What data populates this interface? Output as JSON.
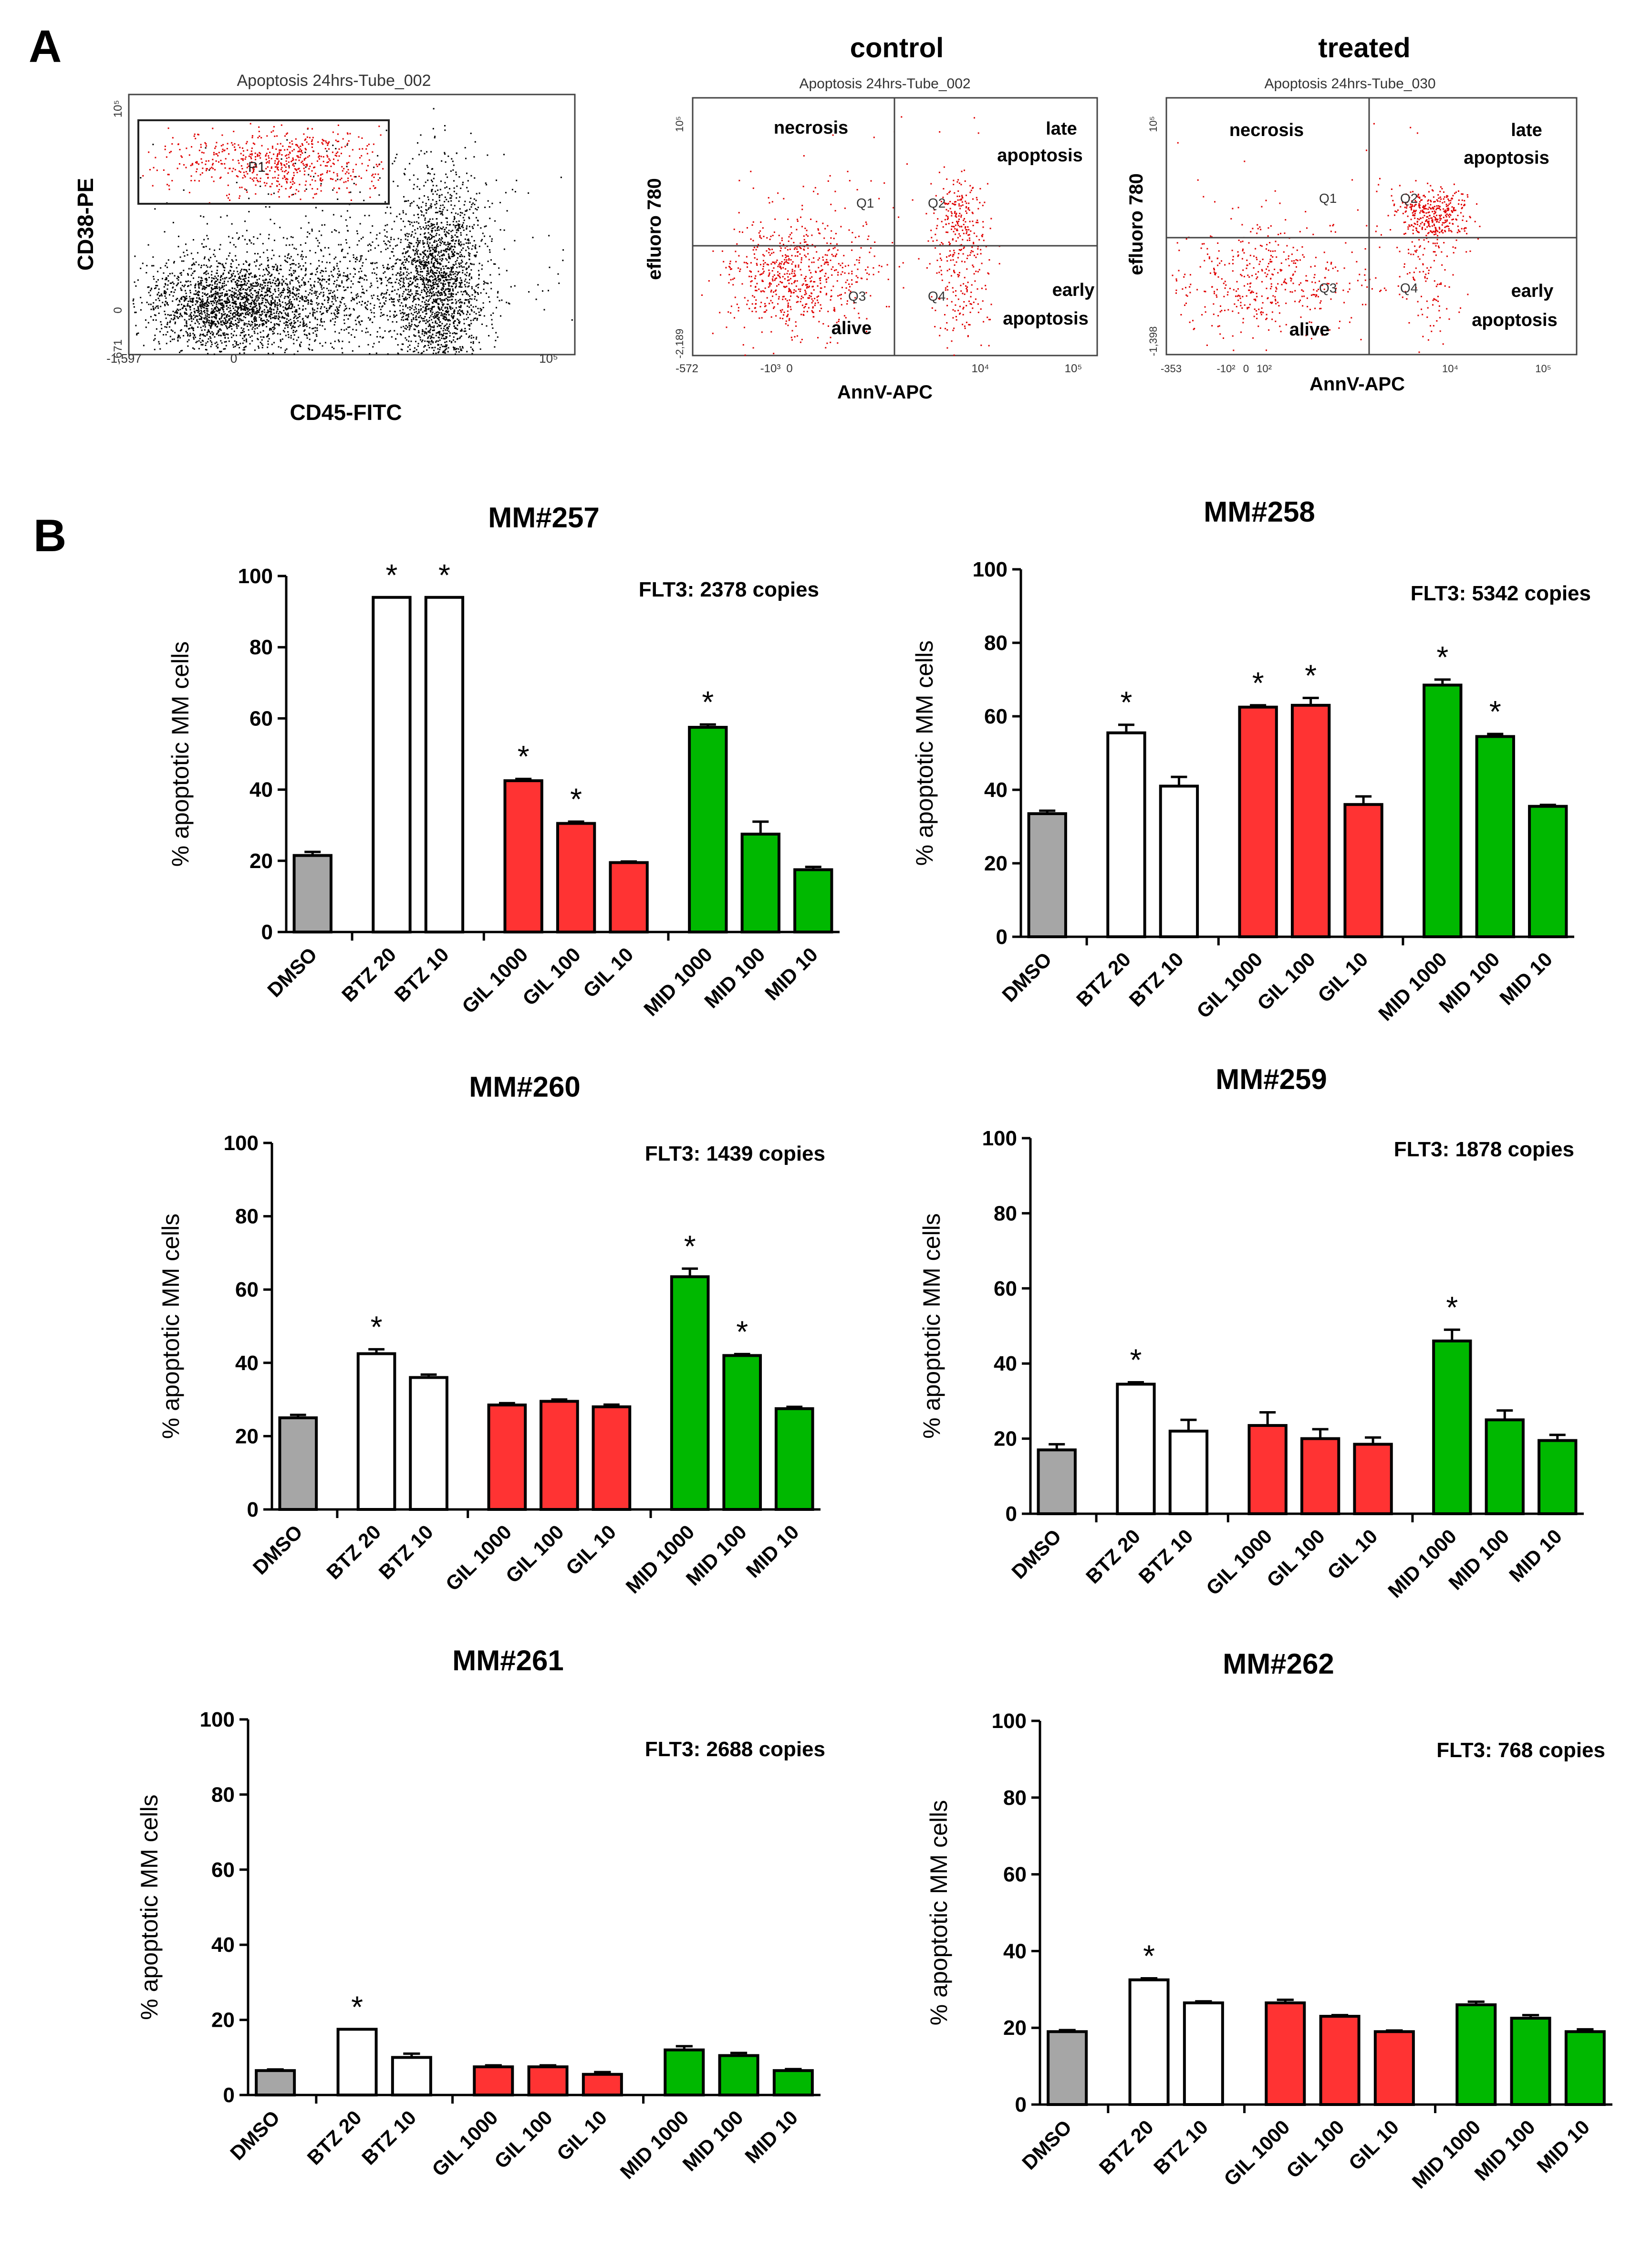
{
  "panel_labels": {
    "a": "A",
    "b": "B"
  },
  "flow": {
    "gating": {
      "plot_title": "Apoptosis 24hrs-Tube_002",
      "xlabel": "CD45-FITC",
      "ylabel": "CD38-PE",
      "gate_label": "P1",
      "x_ticks": [
        "-1,597",
        "0",
        "10⁵"
      ],
      "y_ticks": [
        "-671",
        "0",
        "10⁵"
      ]
    },
    "control": {
      "heading": "control",
      "plot_title": "Apoptosis 24hrs-Tube_002",
      "xlabel": "AnnV-APC",
      "ylabel": "efluoro 780",
      "x_ticks": [
        "-572",
        "-10³",
        "0",
        "10⁴",
        "10⁵"
      ],
      "y_ticks": [
        "-2,189",
        "10⁵"
      ],
      "quadrant_names": {
        "necrosis": "necrosis",
        "late": [
          "late",
          "apoptosis"
        ],
        "early": [
          "early",
          "apoptosis"
        ],
        "alive": "alive"
      },
      "quadrant_ids": [
        "Q1",
        "Q2",
        "Q3",
        "Q4"
      ]
    },
    "treated": {
      "heading": "treated",
      "plot_title": "Apoptosis 24hrs-Tube_030",
      "xlabel": "AnnV-APC",
      "ylabel": "efluoro 780",
      "x_ticks": [
        "-353",
        "-10²",
        "0",
        "10²",
        "10⁴",
        "10⁵"
      ],
      "y_ticks": [
        "-1,398",
        "10⁵"
      ],
      "quadrant_names": {
        "necrosis": "necrosis",
        "late": [
          "late",
          "apoptosis"
        ],
        "early": [
          "early",
          "apoptosis"
        ],
        "alive": "alive"
      },
      "quadrant_ids": [
        "Q1",
        "Q2",
        "Q3",
        "Q4"
      ]
    }
  },
  "colors": {
    "DMSO": "#a6a6a6",
    "BTZ": "#ffffff",
    "GIL": "#ff3333",
    "MID": "#00b800",
    "gate_dots": "#e00000",
    "dots": "#000000"
  },
  "chart_data": [
    {
      "type": "bar",
      "title": "MM#257",
      "annotation": "FLT3: 2378  copies",
      "ylabel": "% apoptotic MM cells",
      "ylim": [
        0,
        100
      ],
      "yticks": [
        "0",
        "20",
        "40",
        "60",
        "80",
        "100"
      ],
      "categories": [
        "DMSO",
        "BTZ 20",
        "BTZ 10",
        "GIL 1000",
        "GIL 100",
        "GIL 10",
        "MID 1000",
        "MID 100",
        "MID 10"
      ],
      "groups": [
        "DMSO",
        "BTZ",
        "BTZ",
        "GIL",
        "GIL",
        "GIL",
        "MID",
        "MID",
        "MID"
      ],
      "values": [
        21.5,
        94,
        94,
        42.5,
        30.5,
        19.5,
        57.5,
        27.5,
        17.5
      ],
      "errors": [
        1,
        0,
        0,
        0.5,
        0.5,
        0.3,
        0.8,
        3.5,
        0.8
      ],
      "significant": [
        false,
        true,
        true,
        true,
        true,
        false,
        true,
        false,
        false
      ]
    },
    {
      "type": "bar",
      "title": "MM#258",
      "annotation": "FLT3: 5342  copies",
      "ylabel": "% apoptotic MM cells",
      "ylim": [
        0,
        100
      ],
      "yticks": [
        "0",
        "20",
        "40",
        "60",
        "80",
        "100"
      ],
      "categories": [
        "DMSO",
        "BTZ 20",
        "BTZ 10",
        "GIL 1000",
        "GIL 100",
        "GIL 10",
        "MID 1000",
        "MID 100",
        "MID 10"
      ],
      "groups": [
        "DMSO",
        "BTZ",
        "BTZ",
        "GIL",
        "GIL",
        "GIL",
        "MID",
        "MID",
        "MID"
      ],
      "values": [
        33.5,
        55.5,
        41,
        62.5,
        63,
        36,
        68.5,
        54.5,
        35.5
      ],
      "errors": [
        0.8,
        2.2,
        2.5,
        0.5,
        2,
        2.2,
        1.5,
        0.7,
        0.4
      ],
      "significant": [
        false,
        true,
        false,
        true,
        true,
        false,
        true,
        true,
        false
      ]
    },
    {
      "type": "bar",
      "title": "MM#260",
      "annotation": "FLT3: 1439  copies",
      "ylabel": "% apoptotic MM cells",
      "ylim": [
        0,
        100
      ],
      "yticks": [
        "0",
        "20",
        "40",
        "60",
        "80",
        "100"
      ],
      "categories": [
        "DMSO",
        "BTZ 20",
        "BTZ 10",
        "GIL 1000",
        "GIL 100",
        "GIL 10",
        "MID 1000",
        "MID 100",
        "MID 10"
      ],
      "groups": [
        "DMSO",
        "BTZ",
        "BTZ",
        "GIL",
        "GIL",
        "GIL",
        "MID",
        "MID",
        "MID"
      ],
      "values": [
        25,
        42.5,
        36,
        28.5,
        29.5,
        28,
        63.5,
        42,
        27.5
      ],
      "errors": [
        0.8,
        1.2,
        0.8,
        0.5,
        0.5,
        0.6,
        2.2,
        0.4,
        0.5
      ],
      "significant": [
        false,
        true,
        false,
        false,
        false,
        false,
        true,
        true,
        false
      ]
    },
    {
      "type": "bar",
      "title": "MM#259",
      "annotation": "FLT3: 1878  copies",
      "ylabel": "% apoptotic MM cells",
      "ylim": [
        0,
        100
      ],
      "yticks": [
        "0",
        "20",
        "40",
        "60",
        "80",
        "100"
      ],
      "categories": [
        "DMSO",
        "BTZ 20",
        "BTZ 10",
        "GIL 1000",
        "GIL 100",
        "GIL 10",
        "MID 1000",
        "MID 100",
        "MID 10"
      ],
      "groups": [
        "DMSO",
        "BTZ",
        "BTZ",
        "GIL",
        "GIL",
        "GIL",
        "MID",
        "MID",
        "MID"
      ],
      "values": [
        17,
        34.5,
        22,
        23.5,
        20,
        18.5,
        46,
        25,
        19.5
      ],
      "errors": [
        1.5,
        0.5,
        3,
        3.5,
        2.5,
        1.8,
        3,
        2.5,
        1.5
      ],
      "significant": [
        false,
        true,
        false,
        false,
        false,
        false,
        true,
        false,
        false
      ]
    },
    {
      "type": "bar",
      "title": "MM#261",
      "annotation": "FLT3: 2688  copies",
      "ylabel": "% apoptotic MM cells",
      "ylim": [
        0,
        100
      ],
      "yticks": [
        "0",
        "20",
        "40",
        "60",
        "80",
        "100"
      ],
      "categories": [
        "DMSO",
        "BTZ 20",
        "BTZ 10",
        "GIL 1000",
        "GIL 100",
        "GIL 10",
        "MID 1000",
        "MID 100",
        "MID 10"
      ],
      "groups": [
        "DMSO",
        "BTZ",
        "BTZ",
        "GIL",
        "GIL",
        "GIL",
        "MID",
        "MID",
        "MID"
      ],
      "values": [
        6.5,
        17.5,
        10,
        7.5,
        7.5,
        5.5,
        12,
        10.5,
        6.5
      ],
      "errors": [
        0.3,
        0,
        1,
        0.4,
        0.4,
        0.6,
        1,
        0.7,
        0.4
      ],
      "significant": [
        false,
        true,
        false,
        false,
        false,
        false,
        false,
        false,
        false
      ]
    },
    {
      "type": "bar",
      "title": "MM#262",
      "annotation": "FLT3: 768  copies",
      "ylabel": "% apoptotic MM cells",
      "ylim": [
        0,
        100
      ],
      "yticks": [
        "0",
        "20",
        "40",
        "60",
        "80",
        "100"
      ],
      "categories": [
        "DMSO",
        "BTZ 20",
        "BTZ 10",
        "GIL 1000",
        "GIL 100",
        "GIL 10",
        "MID 1000",
        "MID 100",
        "MID 10"
      ],
      "groups": [
        "DMSO",
        "BTZ",
        "BTZ",
        "GIL",
        "GIL",
        "GIL",
        "MID",
        "MID",
        "MID"
      ],
      "values": [
        19,
        32.5,
        26.5,
        26.5,
        23,
        19,
        26,
        22.5,
        19
      ],
      "errors": [
        0.4,
        0.4,
        0.4,
        0.8,
        0.3,
        0.3,
        0.8,
        0.8,
        0.6
      ],
      "significant": [
        false,
        true,
        false,
        false,
        false,
        false,
        false,
        false,
        false
      ]
    }
  ]
}
